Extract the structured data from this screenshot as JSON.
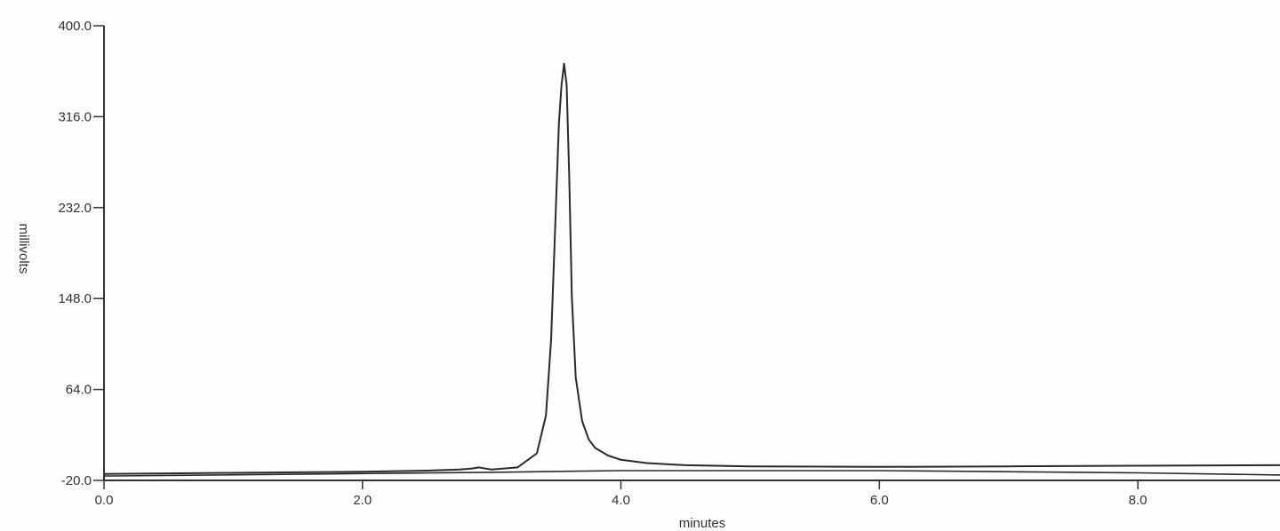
{
  "chart_data": {
    "type": "line",
    "xlabel": "minutes",
    "ylabel": "millivolts",
    "xlim": [
      0,
      9.1
    ],
    "ylim": [
      -20,
      400
    ],
    "x_ticks": [
      0,
      2,
      4,
      6,
      8
    ],
    "x_tick_labels": [
      "0.0",
      "2.0",
      "4.0",
      "6.0",
      "8.0"
    ],
    "y_ticks": [
      400,
      316,
      232,
      148,
      64,
      -20
    ],
    "y_tick_labels": [
      "400.0",
      "316.0",
      "232.0",
      "148.0",
      "64.0",
      "-20.0"
    ],
    "grid": false,
    "colors": {
      "trace": "#2a2a2a",
      "axis": "#333333",
      "baseline": "#2a2a2a"
    },
    "series": [
      {
        "x": [
          0.0,
          0.5,
          1.0,
          1.5,
          2.0,
          2.5,
          2.75,
          2.85,
          2.9,
          2.95,
          3.0,
          3.2,
          3.35,
          3.42,
          3.46,
          3.49,
          3.52,
          3.54,
          3.56,
          3.58,
          3.6,
          3.62,
          3.65,
          3.7,
          3.75,
          3.8,
          3.9,
          4.0,
          4.2,
          4.5,
          5.0,
          6.0,
          7.0,
          8.0,
          9.1
        ],
        "y": [
          -14.0,
          -13.5,
          -13.0,
          -12.5,
          -12.0,
          -11.0,
          -10.0,
          -9.0,
          -8.0,
          -9.0,
          -10.0,
          -8.0,
          5.0,
          40.0,
          110.0,
          210.0,
          310.0,
          345.0,
          365.0,
          345.0,
          260.0,
          150.0,
          75.0,
          35.0,
          18.0,
          10.0,
          3.0,
          -1.0,
          -4.0,
          -6.0,
          -7.0,
          -7.5,
          -7.0,
          -6.5,
          -6.0
        ]
      },
      {
        "x": [
          0.0,
          3.0,
          4.0,
          6.0,
          8.0,
          9.1
        ],
        "y": [
          -16.0,
          -12.5,
          -11.0,
          -11.0,
          -13.0,
          -15.0
        ]
      }
    ]
  }
}
